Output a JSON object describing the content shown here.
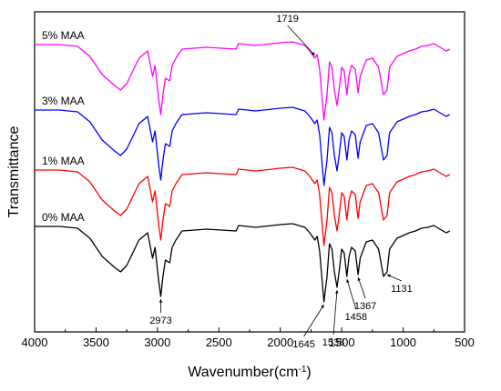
{
  "chart_data": {
    "type": "line",
    "xlabel": "Wavenumber(cm",
    "xlabel_sup": "-1",
    "xlabel_close": ")",
    "ylabel": "Transmittance",
    "xlim": [
      4000,
      500
    ],
    "x_ticks": [
      4000,
      3500,
      3000,
      2500,
      2000,
      1500,
      1000,
      500
    ],
    "y_ticks_shown": false,
    "grid": false,
    "series": [
      {
        "name": "5% MAA",
        "color": "#ff00ff",
        "offset": 3,
        "points": [
          [
            4000,
            0.95
          ],
          [
            3800,
            0.95
          ],
          [
            3650,
            0.93
          ],
          [
            3550,
            0.82
          ],
          [
            3450,
            0.62
          ],
          [
            3350,
            0.5
          ],
          [
            3300,
            0.45
          ],
          [
            3250,
            0.52
          ],
          [
            3150,
            0.8
          ],
          [
            3080,
            0.88
          ],
          [
            3040,
            0.6
          ],
          [
            3020,
            0.72
          ],
          [
            2990,
            0.35
          ],
          [
            2973,
            0.18
          ],
          [
            2955,
            0.4
          ],
          [
            2935,
            0.58
          ],
          [
            2900,
            0.55
          ],
          [
            2880,
            0.72
          ],
          [
            2850,
            0.8
          ],
          [
            2800,
            0.9
          ],
          [
            2600,
            0.92
          ],
          [
            2360,
            0.9
          ],
          [
            2340,
            0.96
          ],
          [
            2200,
            0.94
          ],
          [
            2000,
            0.97
          ],
          [
            1900,
            0.98
          ],
          [
            1800,
            0.94
          ],
          [
            1760,
            0.88
          ],
          [
            1719,
            0.8
          ],
          [
            1700,
            0.84
          ],
          [
            1680,
            0.68
          ],
          [
            1645,
            0.12
          ],
          [
            1620,
            0.4
          ],
          [
            1600,
            0.76
          ],
          [
            1580,
            0.7
          ],
          [
            1560,
            0.45
          ],
          [
            1538,
            0.28
          ],
          [
            1520,
            0.46
          ],
          [
            1500,
            0.7
          ],
          [
            1480,
            0.66
          ],
          [
            1458,
            0.4
          ],
          [
            1440,
            0.62
          ],
          [
            1420,
            0.72
          ],
          [
            1390,
            0.68
          ],
          [
            1367,
            0.42
          ],
          [
            1350,
            0.6
          ],
          [
            1300,
            0.78
          ],
          [
            1250,
            0.8
          ],
          [
            1200,
            0.7
          ],
          [
            1160,
            0.4
          ],
          [
            1131,
            0.45
          ],
          [
            1110,
            0.7
          ],
          [
            1050,
            0.82
          ],
          [
            1000,
            0.85
          ],
          [
            950,
            0.88
          ],
          [
            900,
            0.9
          ],
          [
            850,
            0.93
          ],
          [
            800,
            0.94
          ],
          [
            750,
            0.96
          ],
          [
            700,
            0.92
          ],
          [
            650,
            0.88
          ],
          [
            620,
            0.9
          ]
        ]
      },
      {
        "name": "3% MAA",
        "color": "#0000ff",
        "offset": 2,
        "points": [
          [
            4000,
            0.95
          ],
          [
            3800,
            0.95
          ],
          [
            3650,
            0.93
          ],
          [
            3550,
            0.82
          ],
          [
            3450,
            0.62
          ],
          [
            3350,
            0.5
          ],
          [
            3300,
            0.45
          ],
          [
            3250,
            0.52
          ],
          [
            3150,
            0.8
          ],
          [
            3080,
            0.88
          ],
          [
            3040,
            0.6
          ],
          [
            3020,
            0.72
          ],
          [
            2990,
            0.35
          ],
          [
            2973,
            0.18
          ],
          [
            2955,
            0.4
          ],
          [
            2935,
            0.58
          ],
          [
            2900,
            0.55
          ],
          [
            2880,
            0.72
          ],
          [
            2850,
            0.8
          ],
          [
            2800,
            0.9
          ],
          [
            2600,
            0.92
          ],
          [
            2360,
            0.9
          ],
          [
            2340,
            0.96
          ],
          [
            2200,
            0.94
          ],
          [
            2000,
            0.97
          ],
          [
            1900,
            0.98
          ],
          [
            1800,
            0.94
          ],
          [
            1760,
            0.88
          ],
          [
            1719,
            0.8
          ],
          [
            1700,
            0.84
          ],
          [
            1680,
            0.68
          ],
          [
            1645,
            0.12
          ],
          [
            1620,
            0.4
          ],
          [
            1600,
            0.76
          ],
          [
            1580,
            0.7
          ],
          [
            1560,
            0.45
          ],
          [
            1538,
            0.28
          ],
          [
            1520,
            0.46
          ],
          [
            1500,
            0.7
          ],
          [
            1480,
            0.66
          ],
          [
            1458,
            0.4
          ],
          [
            1440,
            0.62
          ],
          [
            1420,
            0.72
          ],
          [
            1390,
            0.68
          ],
          [
            1367,
            0.42
          ],
          [
            1350,
            0.6
          ],
          [
            1300,
            0.78
          ],
          [
            1250,
            0.8
          ],
          [
            1200,
            0.7
          ],
          [
            1160,
            0.4
          ],
          [
            1131,
            0.45
          ],
          [
            1110,
            0.7
          ],
          [
            1050,
            0.82
          ],
          [
            1000,
            0.85
          ],
          [
            950,
            0.88
          ],
          [
            900,
            0.9
          ],
          [
            850,
            0.93
          ],
          [
            800,
            0.94
          ],
          [
            750,
            0.96
          ],
          [
            700,
            0.92
          ],
          [
            650,
            0.88
          ],
          [
            620,
            0.9
          ]
        ]
      },
      {
        "name": "1% MAA",
        "color": "#ff0000",
        "offset": 1,
        "points": [
          [
            4000,
            0.95
          ],
          [
            3800,
            0.95
          ],
          [
            3650,
            0.93
          ],
          [
            3550,
            0.82
          ],
          [
            3450,
            0.62
          ],
          [
            3350,
            0.5
          ],
          [
            3300,
            0.45
          ],
          [
            3250,
            0.52
          ],
          [
            3150,
            0.8
          ],
          [
            3080,
            0.88
          ],
          [
            3040,
            0.6
          ],
          [
            3020,
            0.72
          ],
          [
            2990,
            0.35
          ],
          [
            2973,
            0.18
          ],
          [
            2955,
            0.4
          ],
          [
            2935,
            0.58
          ],
          [
            2900,
            0.55
          ],
          [
            2880,
            0.72
          ],
          [
            2850,
            0.8
          ],
          [
            2800,
            0.9
          ],
          [
            2600,
            0.92
          ],
          [
            2360,
            0.9
          ],
          [
            2340,
            0.96
          ],
          [
            2200,
            0.94
          ],
          [
            2000,
            0.97
          ],
          [
            1900,
            0.98
          ],
          [
            1800,
            0.94
          ],
          [
            1760,
            0.88
          ],
          [
            1719,
            0.8
          ],
          [
            1700,
            0.84
          ],
          [
            1680,
            0.68
          ],
          [
            1645,
            0.12
          ],
          [
            1620,
            0.4
          ],
          [
            1600,
            0.76
          ],
          [
            1580,
            0.7
          ],
          [
            1560,
            0.45
          ],
          [
            1538,
            0.28
          ],
          [
            1520,
            0.46
          ],
          [
            1500,
            0.7
          ],
          [
            1480,
            0.66
          ],
          [
            1458,
            0.4
          ],
          [
            1440,
            0.62
          ],
          [
            1420,
            0.72
          ],
          [
            1390,
            0.68
          ],
          [
            1367,
            0.42
          ],
          [
            1350,
            0.6
          ],
          [
            1300,
            0.78
          ],
          [
            1250,
            0.8
          ],
          [
            1200,
            0.7
          ],
          [
            1160,
            0.4
          ],
          [
            1131,
            0.45
          ],
          [
            1110,
            0.7
          ],
          [
            1050,
            0.82
          ],
          [
            1000,
            0.85
          ],
          [
            950,
            0.88
          ],
          [
            900,
            0.9
          ],
          [
            850,
            0.93
          ],
          [
            800,
            0.94
          ],
          [
            750,
            0.96
          ],
          [
            700,
            0.92
          ],
          [
            650,
            0.88
          ],
          [
            620,
            0.9
          ]
        ]
      },
      {
        "name": "0% MAA",
        "color": "#000000",
        "offset": 0,
        "points": [
          [
            4000,
            0.95
          ],
          [
            3800,
            0.95
          ],
          [
            3650,
            0.93
          ],
          [
            3550,
            0.82
          ],
          [
            3450,
            0.62
          ],
          [
            3350,
            0.5
          ],
          [
            3300,
            0.45
          ],
          [
            3250,
            0.52
          ],
          [
            3150,
            0.8
          ],
          [
            3080,
            0.88
          ],
          [
            3040,
            0.6
          ],
          [
            3020,
            0.72
          ],
          [
            2990,
            0.35
          ],
          [
            2973,
            0.18
          ],
          [
            2955,
            0.4
          ],
          [
            2935,
            0.58
          ],
          [
            2900,
            0.55
          ],
          [
            2880,
            0.72
          ],
          [
            2850,
            0.8
          ],
          [
            2800,
            0.9
          ],
          [
            2600,
            0.92
          ],
          [
            2360,
            0.9
          ],
          [
            2340,
            0.96
          ],
          [
            2200,
            0.94
          ],
          [
            2000,
            0.97
          ],
          [
            1900,
            0.98
          ],
          [
            1800,
            0.94
          ],
          [
            1760,
            0.88
          ],
          [
            1719,
            0.8
          ],
          [
            1700,
            0.84
          ],
          [
            1680,
            0.68
          ],
          [
            1645,
            0.12
          ],
          [
            1620,
            0.4
          ],
          [
            1600,
            0.76
          ],
          [
            1580,
            0.7
          ],
          [
            1560,
            0.45
          ],
          [
            1538,
            0.28
          ],
          [
            1520,
            0.46
          ],
          [
            1500,
            0.7
          ],
          [
            1480,
            0.66
          ],
          [
            1458,
            0.4
          ],
          [
            1440,
            0.62
          ],
          [
            1420,
            0.72
          ],
          [
            1390,
            0.68
          ],
          [
            1367,
            0.42
          ],
          [
            1350,
            0.6
          ],
          [
            1300,
            0.78
          ],
          [
            1250,
            0.8
          ],
          [
            1200,
            0.7
          ],
          [
            1160,
            0.4
          ],
          [
            1131,
            0.45
          ],
          [
            1110,
            0.7
          ],
          [
            1050,
            0.82
          ],
          [
            1000,
            0.85
          ],
          [
            950,
            0.88
          ],
          [
            900,
            0.9
          ],
          [
            850,
            0.93
          ],
          [
            800,
            0.94
          ],
          [
            750,
            0.96
          ],
          [
            700,
            0.92
          ],
          [
            650,
            0.88
          ],
          [
            620,
            0.9
          ]
        ]
      }
    ],
    "annotations": [
      {
        "label": "2973",
        "x": 2973,
        "series": "0% MAA"
      },
      {
        "label": "1645",
        "x": 1645,
        "series": "0% MAA"
      },
      {
        "label": "1538",
        "x": 1538,
        "series": "0% MAA"
      },
      {
        "label": "1458",
        "x": 1458,
        "series": "0% MAA"
      },
      {
        "label": "1367",
        "x": 1367,
        "series": "0% MAA"
      },
      {
        "label": "1131",
        "x": 1131,
        "series": "0% MAA"
      },
      {
        "label": "1719",
        "x": 1719,
        "series": "5% MAA"
      }
    ]
  }
}
